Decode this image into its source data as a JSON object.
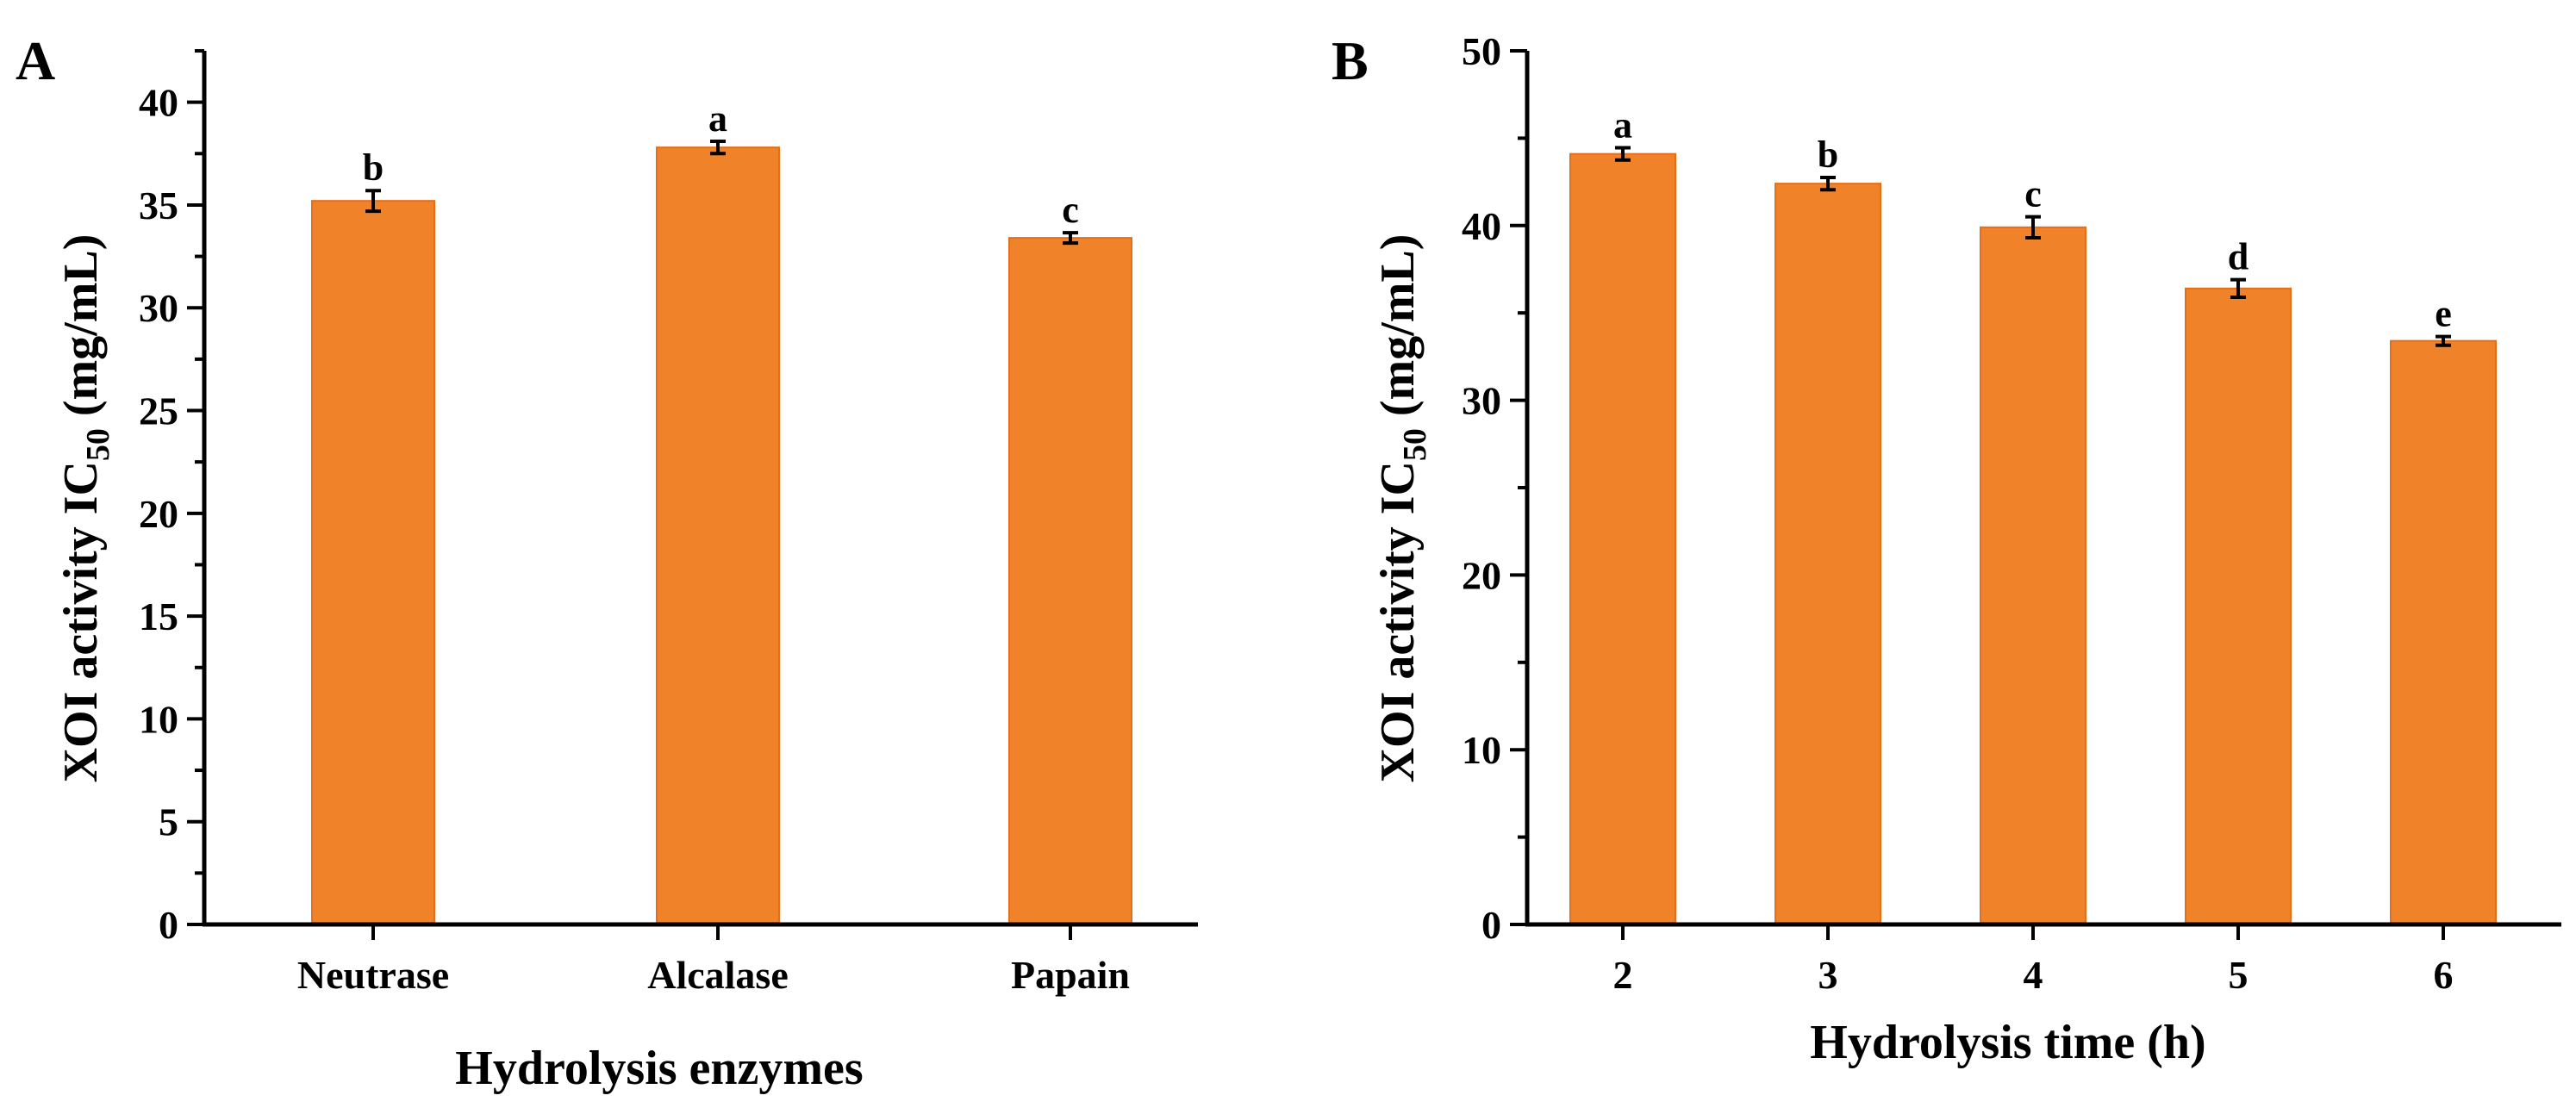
{
  "chart_data": [
    {
      "type": "bar",
      "panel": "A",
      "title": "",
      "xlabel": "Hydrolysis enzymes",
      "ylabel_main": "XOI activity IC",
      "ylabel_sub": "50",
      "ylabel_unit": " (mg/mL)",
      "categories": [
        "Neutrase",
        "Alcalase",
        "Papain"
      ],
      "values": [
        35.2,
        37.8,
        33.4
      ],
      "errors": [
        0.5,
        0.3,
        0.25
      ],
      "significance": [
        "b",
        "a",
        "c"
      ],
      "ylim": [
        0,
        42.5
      ],
      "yticks": [
        0,
        5,
        10,
        15,
        20,
        25,
        30,
        35,
        40
      ],
      "minor_step": 2.5,
      "bar_color": "#F0832A",
      "bar_edge": "#E56F17"
    },
    {
      "type": "bar",
      "panel": "B",
      "title": "",
      "xlabel": "Hydrolysis time (h)",
      "ylabel_main": "XOI activity IC",
      "ylabel_sub": "50",
      "ylabel_unit": " (mg/mL)",
      "categories": [
        "2",
        "3",
        "4",
        "5",
        "6"
      ],
      "values": [
        44.1,
        42.4,
        39.9,
        36.4,
        33.4
      ],
      "errors": [
        0.35,
        0.35,
        0.6,
        0.5,
        0.25
      ],
      "significance": [
        "a",
        "b",
        "c",
        "d",
        "e"
      ],
      "ylim": [
        0,
        50
      ],
      "yticks": [
        0,
        10,
        20,
        30,
        40,
        50
      ],
      "minor_step": 5,
      "bar_color": "#F0832A",
      "bar_edge": "#E56F17"
    }
  ]
}
